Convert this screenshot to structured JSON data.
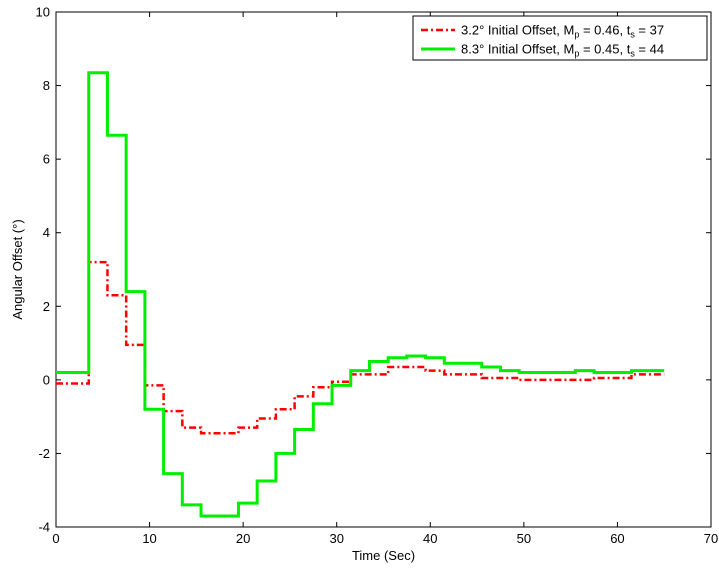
{
  "chart_data": {
    "type": "line",
    "title": "",
    "xlabel": "Time (Sec)",
    "ylabel": "Angular Offset (°)",
    "xlim": [
      0,
      70
    ],
    "ylim": [
      -4,
      10
    ],
    "xticks": [
      0,
      10,
      20,
      30,
      40,
      50,
      60,
      70
    ],
    "yticks": [
      -4,
      -2,
      0,
      2,
      4,
      6,
      8,
      10
    ],
    "grid": false,
    "legend_position": "top-right",
    "series": [
      {
        "label_main": "3.2° Initial Offset, M",
        "label_sub1": "p",
        "label_mid": " = 0.46, t",
        "label_sub2": "s",
        "label_end": " = 37",
        "color": "#ff0000",
        "style": "dash-dot",
        "points": [
          [
            0,
            -0.1
          ],
          [
            3.5,
            -0.1
          ],
          [
            3.5,
            3.2
          ],
          [
            5.5,
            3.2
          ],
          [
            5.5,
            2.3
          ],
          [
            7.5,
            2.3
          ],
          [
            7.5,
            0.95
          ],
          [
            9.5,
            0.95
          ],
          [
            9.5,
            -0.15
          ],
          [
            11.5,
            -0.15
          ],
          [
            11.5,
            -0.85
          ],
          [
            13.5,
            -0.85
          ],
          [
            13.5,
            -1.3
          ],
          [
            15.5,
            -1.3
          ],
          [
            15.5,
            -1.45
          ],
          [
            19.5,
            -1.45
          ],
          [
            19.5,
            -1.3
          ],
          [
            21.5,
            -1.3
          ],
          [
            21.5,
            -1.05
          ],
          [
            23.5,
            -1.05
          ],
          [
            23.5,
            -0.8
          ],
          [
            25.5,
            -0.8
          ],
          [
            25.5,
            -0.45
          ],
          [
            27.5,
            -0.45
          ],
          [
            27.5,
            -0.2
          ],
          [
            29.5,
            -0.2
          ],
          [
            29.5,
            -0.05
          ],
          [
            31.5,
            -0.05
          ],
          [
            31.5,
            0.15
          ],
          [
            35.5,
            0.15
          ],
          [
            35.5,
            0.35
          ],
          [
            39.5,
            0.35
          ],
          [
            39.5,
            0.25
          ],
          [
            41.5,
            0.25
          ],
          [
            41.5,
            0.15
          ],
          [
            45.5,
            0.15
          ],
          [
            45.5,
            0.05
          ],
          [
            49.5,
            0.05
          ],
          [
            49.5,
            0.0
          ],
          [
            57.5,
            0.0
          ],
          [
            57.5,
            0.05
          ],
          [
            61.5,
            0.05
          ],
          [
            61.5,
            0.15
          ],
          [
            65,
            0.15
          ]
        ]
      },
      {
        "label_main": "8.3° Initial Offset, M",
        "label_sub1": "p",
        "label_mid": " = 0.45, t",
        "label_sub2": "s",
        "label_end": " = 44",
        "color": "#00ee00",
        "style": "solid",
        "points": [
          [
            0,
            0.2
          ],
          [
            3.5,
            0.2
          ],
          [
            3.5,
            8.35
          ],
          [
            5.5,
            8.35
          ],
          [
            5.5,
            6.65
          ],
          [
            7.5,
            6.65
          ],
          [
            7.5,
            2.4
          ],
          [
            9.5,
            2.4
          ],
          [
            9.5,
            -0.8
          ],
          [
            11.5,
            -0.8
          ],
          [
            11.5,
            -2.55
          ],
          [
            13.5,
            -2.55
          ],
          [
            13.5,
            -3.4
          ],
          [
            15.5,
            -3.4
          ],
          [
            15.5,
            -3.7
          ],
          [
            19.5,
            -3.7
          ],
          [
            19.5,
            -3.35
          ],
          [
            21.5,
            -3.35
          ],
          [
            21.5,
            -2.75
          ],
          [
            23.5,
            -2.75
          ],
          [
            23.5,
            -2.0
          ],
          [
            25.5,
            -2.0
          ],
          [
            25.5,
            -1.35
          ],
          [
            27.5,
            -1.35
          ],
          [
            27.5,
            -0.65
          ],
          [
            29.5,
            -0.65
          ],
          [
            29.5,
            -0.15
          ],
          [
            31.5,
            -0.15
          ],
          [
            31.5,
            0.25
          ],
          [
            33.5,
            0.25
          ],
          [
            33.5,
            0.5
          ],
          [
            35.5,
            0.5
          ],
          [
            35.5,
            0.6
          ],
          [
            37.5,
            0.6
          ],
          [
            37.5,
            0.65
          ],
          [
            39.5,
            0.65
          ],
          [
            39.5,
            0.6
          ],
          [
            41.5,
            0.6
          ],
          [
            41.5,
            0.45
          ],
          [
            45.5,
            0.45
          ],
          [
            45.5,
            0.35
          ],
          [
            47.5,
            0.35
          ],
          [
            47.5,
            0.25
          ],
          [
            49.5,
            0.25
          ],
          [
            49.5,
            0.2
          ],
          [
            55.5,
            0.2
          ],
          [
            55.5,
            0.25
          ],
          [
            57.5,
            0.25
          ],
          [
            57.5,
            0.2
          ],
          [
            61.5,
            0.2
          ],
          [
            61.5,
            0.25
          ],
          [
            65,
            0.25
          ]
        ]
      }
    ]
  }
}
